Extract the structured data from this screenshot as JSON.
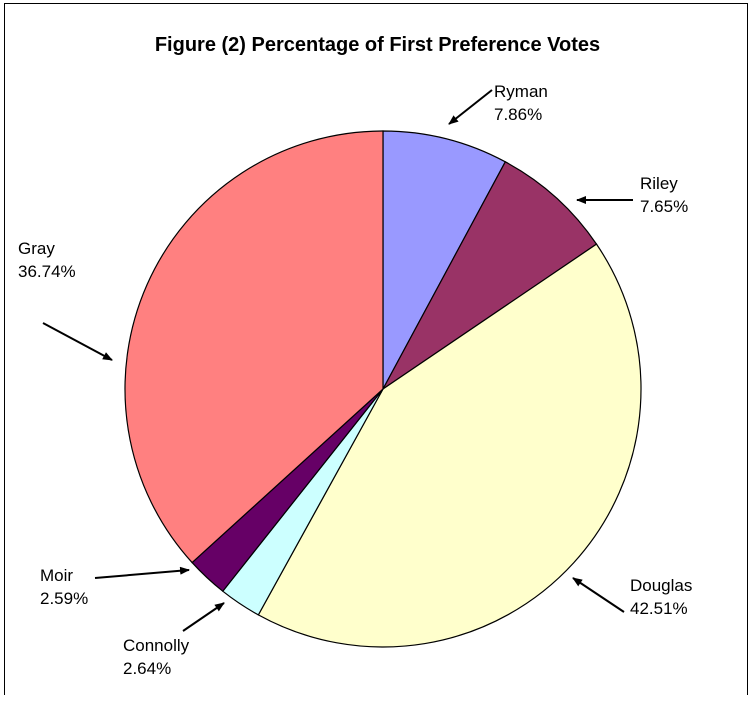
{
  "chart_data": {
    "type": "pie",
    "title": "Figure (2) Percentage of First Preference Votes",
    "slices": [
      {
        "name": "Ryman",
        "value": 7.86,
        "label": "7.86%",
        "color": "#9999ff"
      },
      {
        "name": "Riley",
        "value": 7.65,
        "label": "7.65%",
        "color": "#993366"
      },
      {
        "name": "Douglas",
        "value": 42.51,
        "label": "42.51%",
        "color": "#ffffcc"
      },
      {
        "name": "Connolly",
        "value": 2.64,
        "label": "2.64%",
        "color": "#ccffff"
      },
      {
        "name": "Moir",
        "value": 2.59,
        "label": "2.59%",
        "color": "#660066"
      },
      {
        "name": "Gray",
        "value": 36.74,
        "label": "36.74%",
        "color": "#ff8080"
      }
    ],
    "start_angle": "12 o'clock",
    "direction": "clockwise",
    "legend": "none"
  }
}
